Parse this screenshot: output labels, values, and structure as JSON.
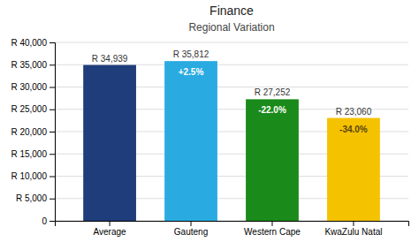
{
  "chart_data": {
    "type": "bar",
    "title": "Finance",
    "subtitle": "Regional Variation",
    "categories": [
      "Average",
      "Gauteng",
      "Western Cape",
      "KwaZulu Natal"
    ],
    "values": [
      34939,
      35812,
      27252,
      23060
    ],
    "value_labels": [
      "R 34,939",
      "R 35,812",
      "R 27,252",
      "R 23,060"
    ],
    "data_labels": true,
    "colors": [
      "#1F3D7A",
      "#29ABE2",
      "#1A8A1A",
      "#F5C200"
    ],
    "annotations": [
      {
        "category": "Gauteng",
        "text": "+2.5%"
      },
      {
        "category": "Western Cape",
        "text": "-22.0%"
      },
      {
        "category": "KwaZulu Natal",
        "text": "-34.0%"
      }
    ],
    "ylim": [
      0,
      40000
    ],
    "yticks": [
      0,
      {
        "value": 5000,
        "label": "R 5,000"
      },
      {
        "value": 10000,
        "label": "R 10,000"
      },
      {
        "value": 15000,
        "label": "R 15,000"
      },
      {
        "value": 20000,
        "label": "R 20,000"
      },
      {
        "value": 25000,
        "label": "R 25,000"
      },
      {
        "value": 30000,
        "label": "R 30,000"
      },
      {
        "value": 35000,
        "label": "R 35,000"
      },
      {
        "value": 40000,
        "label": "R 40,000"
      }
    ],
    "grid": true
  }
}
